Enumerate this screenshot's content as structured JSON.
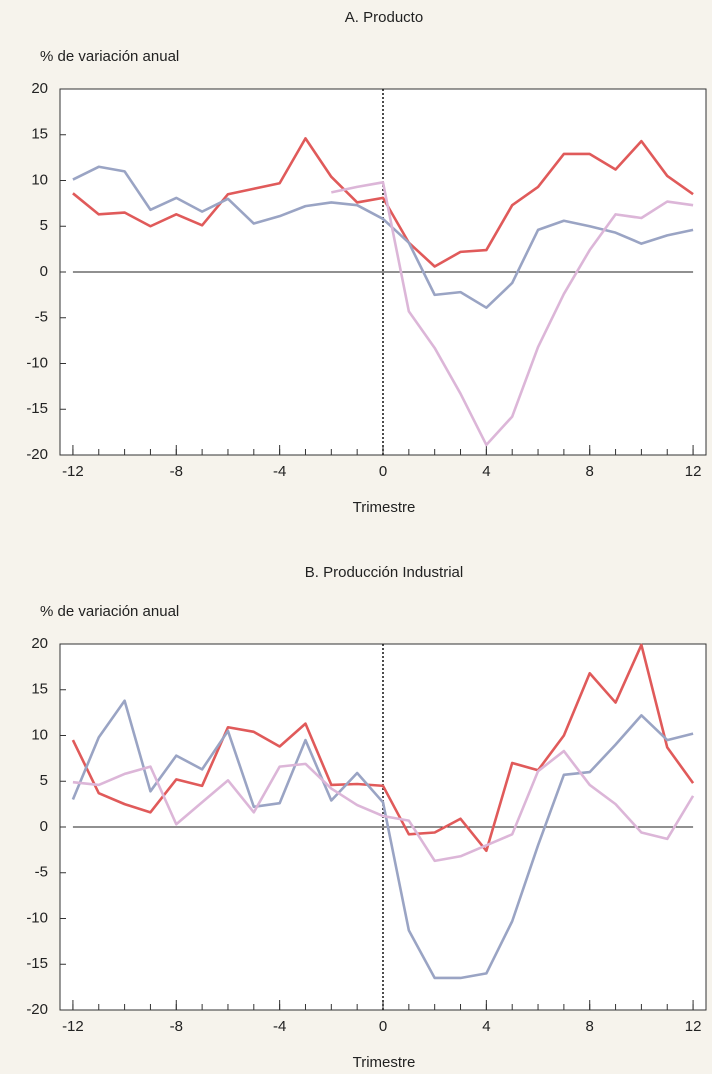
{
  "chart_data": [
    {
      "type": "line",
      "title": "A. Producto",
      "ylabel": "% de variación anual",
      "xlabel": "Trimestre",
      "x": [
        -12,
        -11,
        -10,
        -9,
        -8,
        -7,
        -6,
        -5,
        -4,
        -3,
        -2,
        -1,
        0,
        1,
        2,
        3,
        4,
        5,
        6,
        7,
        8,
        9,
        10,
        11,
        12
      ],
      "series": [
        {
          "color": "#e05a5a",
          "values": [
            8.6,
            6.3,
            6.5,
            5.0,
            6.3,
            5.1,
            8.5,
            9.1,
            9.7,
            14.6,
            10.4,
            7.6,
            8.1,
            3.2,
            0.6,
            2.2,
            2.4,
            7.3,
            9.3,
            12.9,
            12.9,
            11.2,
            14.3,
            10.5,
            8.5
          ]
        },
        {
          "color": "#9aa4c4",
          "values": [
            10.1,
            11.5,
            11.0,
            6.8,
            8.1,
            6.6,
            8.0,
            5.3,
            6.1,
            7.2,
            7.6,
            7.3,
            5.8,
            3.2,
            -2.5,
            -2.2,
            -3.9,
            -1.2,
            4.6,
            5.6,
            5.0,
            4.3,
            3.1,
            4.0,
            4.6
          ]
        },
        {
          "color": "#dcb6d8",
          "values": [
            null,
            null,
            null,
            null,
            null,
            null,
            null,
            null,
            null,
            null,
            8.7,
            9.3,
            9.8,
            -4.3,
            -8.3,
            -13.3,
            -18.9,
            -15.8,
            -8.2,
            -2.4,
            2.4,
            6.3,
            5.9,
            7.7,
            7.3
          ]
        }
      ],
      "xlim": [
        -12.5,
        12.5
      ],
      "xticks": [
        -12,
        -8,
        -4,
        0,
        4,
        8,
        12
      ],
      "ylim": [
        -20,
        20
      ],
      "yticks": [
        -20,
        -15,
        -10,
        -5,
        0,
        5,
        10,
        15,
        20
      ],
      "hline": 0,
      "vline": 0,
      "grid": false
    },
    {
      "type": "line",
      "title": "B. Producción Industrial",
      "ylabel": "% de variación anual",
      "xlabel": "Trimestre",
      "x": [
        -12,
        -11,
        -10,
        -9,
        -8,
        -7,
        -6,
        -5,
        -4,
        -3,
        -2,
        -1,
        0,
        1,
        2,
        3,
        4,
        5,
        6,
        7,
        8,
        9,
        10,
        11,
        12
      ],
      "series": [
        {
          "color": "#e05a5a",
          "values": [
            9.5,
            3.7,
            2.5,
            1.6,
            5.2,
            4.5,
            10.9,
            10.4,
            8.8,
            11.3,
            4.6,
            4.7,
            4.5,
            -0.8,
            -0.6,
            0.9,
            -2.6,
            7.0,
            6.2,
            10.0,
            16.8,
            13.6,
            19.9,
            8.7,
            4.8
          ]
        },
        {
          "color": "#9aa4c4",
          "values": [
            3.0,
            9.8,
            13.8,
            3.9,
            7.8,
            6.3,
            10.5,
            2.2,
            2.6,
            9.5,
            2.9,
            5.9,
            2.7,
            -11.3,
            -16.5,
            -16.5,
            -16.0,
            -10.3,
            -2.0,
            5.7,
            6.0,
            9.0,
            12.2,
            9.5,
            10.2
          ]
        },
        {
          "color": "#dcb6d8",
          "values": [
            4.9,
            4.6,
            5.8,
            6.6,
            0.3,
            2.7,
            5.1,
            1.6,
            6.6,
            6.9,
            4.2,
            2.4,
            1.2,
            0.7,
            -3.7,
            -3.2,
            -2.0,
            -0.8,
            6.1,
            8.3,
            4.6,
            2.5,
            -0.6,
            -1.3,
            3.4
          ]
        }
      ],
      "xlim": [
        -12.5,
        12.5
      ],
      "xticks": [
        -12,
        -8,
        -4,
        0,
        4,
        8,
        12
      ],
      "ylim": [
        -20,
        20
      ],
      "yticks": [
        -20,
        -15,
        -10,
        -5,
        0,
        5,
        10,
        15,
        20
      ],
      "hline": 0,
      "vline": 0,
      "grid": false
    }
  ]
}
